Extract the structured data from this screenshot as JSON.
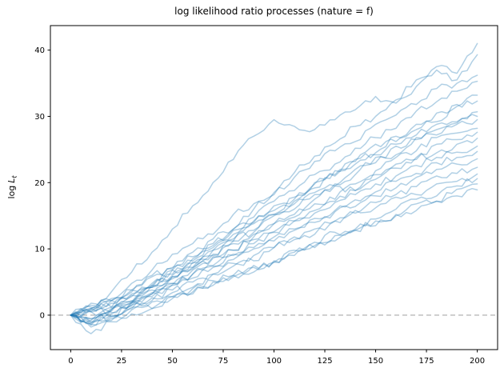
{
  "chart_data": {
    "type": "line",
    "title": "log likelihood ratio processes (nature = f)",
    "xlabel": "",
    "ylabel": "log L_t",
    "ylabel_parts": {
      "prefix": "log",
      "var": "L",
      "sub": "t"
    },
    "grid": false,
    "legend": "none",
    "xlim": [
      -10,
      210
    ],
    "ylim": [
      -5.2,
      43.7
    ],
    "xticks": [
      0,
      25,
      50,
      75,
      100,
      125,
      150,
      175,
      200
    ],
    "yticks": [
      0,
      10,
      20,
      30,
      40
    ],
    "zero_line": {
      "y": 0,
      "style": "dashed",
      "color": "#aaaaaa"
    },
    "line_color": "#1f77b4",
    "line_alpha": 0.35,
    "line_width": 1.5,
    "n_series": 20,
    "x": [
      0,
      10,
      20,
      30,
      40,
      50,
      60,
      70,
      80,
      90,
      100,
      110,
      120,
      130,
      140,
      150,
      160,
      170,
      180,
      190,
      200
    ],
    "series": [
      {
        "name": "path-01",
        "values": [
          0,
          1.0,
          3.5,
          6.5,
          9.5,
          13.0,
          16.5,
          20.0,
          23.5,
          27.0,
          29.5,
          28.5,
          28.0,
          29.5,
          31.0,
          33.0,
          32.0,
          34.5,
          37.5,
          36.5,
          41.0
        ]
      },
      {
        "name": "path-02",
        "values": [
          0,
          -0.8,
          1.2,
          2.0,
          4.5,
          6.0,
          8.5,
          11.5,
          13.0,
          16.0,
          18.5,
          21.5,
          24.0,
          26.0,
          28.5,
          30.0,
          32.5,
          35.5,
          37.0,
          35.5,
          39.3
        ]
      },
      {
        "name": "path-03",
        "values": [
          0,
          1.5,
          2.2,
          4.8,
          6.8,
          9.2,
          10.8,
          12.2,
          15.2,
          16.8,
          18.2,
          20.8,
          23.2,
          24.8,
          26.2,
          28.8,
          30.2,
          31.8,
          34.2,
          35.0,
          36.2
        ]
      },
      {
        "name": "path-04",
        "values": [
          0,
          -1.2,
          0.8,
          2.8,
          4.2,
          6.8,
          8.2,
          10.8,
          12.2,
          14.8,
          17.2,
          18.8,
          21.2,
          22.8,
          25.2,
          26.8,
          28.2,
          30.8,
          32.2,
          33.8,
          35.3
        ]
      },
      {
        "name": "path-05",
        "values": [
          0,
          0.5,
          2.5,
          3.5,
          6.0,
          7.0,
          9.5,
          10.5,
          13.0,
          14.0,
          16.5,
          17.5,
          20.0,
          21.0,
          23.5,
          24.5,
          27.0,
          28.0,
          30.5,
          31.5,
          33.2
        ]
      },
      {
        "name": "path-06",
        "values": [
          0,
          -1.8,
          -0.5,
          1.8,
          3.2,
          5.8,
          7.2,
          9.8,
          11.2,
          13.8,
          15.2,
          17.8,
          19.2,
          21.8,
          23.2,
          25.8,
          26.2,
          28.8,
          29.2,
          31.8,
          32.3
        ]
      },
      {
        "name": "path-07",
        "values": [
          0,
          1.2,
          2.2,
          3.8,
          5.8,
          7.2,
          8.8,
          10.2,
          12.8,
          14.2,
          15.8,
          17.2,
          19.8,
          21.2,
          22.8,
          24.2,
          25.8,
          27.2,
          28.8,
          29.2,
          30.7
        ]
      },
      {
        "name": "path-08",
        "values": [
          0,
          -0.5,
          1.0,
          2.0,
          4.5,
          5.5,
          8.0,
          9.0,
          11.5,
          12.5,
          15.0,
          16.0,
          18.5,
          19.5,
          22.0,
          23.0,
          25.5,
          26.5,
          28.0,
          29.0,
          30.0
        ]
      },
      {
        "name": "path-09",
        "values": [
          0,
          1.8,
          1.2,
          3.8,
          4.2,
          6.8,
          7.2,
          9.8,
          11.2,
          12.8,
          15.2,
          16.8,
          18.2,
          19.8,
          21.2,
          23.8,
          24.2,
          26.8,
          27.2,
          28.8,
          29.5
        ]
      },
      {
        "name": "path-10",
        "values": [
          0,
          -1.0,
          0.8,
          1.8,
          3.8,
          4.8,
          6.8,
          8.8,
          9.8,
          11.8,
          13.8,
          14.8,
          17.5,
          19.5,
          18.8,
          21.8,
          23.8,
          24.8,
          26.8,
          27.5,
          28.2
        ]
      },
      {
        "name": "path-11",
        "values": [
          0,
          0.8,
          2.2,
          3.2,
          4.8,
          6.2,
          7.8,
          9.2,
          10.8,
          12.2,
          13.8,
          15.2,
          16.8,
          17.5,
          19.8,
          21.2,
          22.8,
          23.5,
          25.8,
          26.5,
          27.6
        ]
      },
      {
        "name": "path-12",
        "values": [
          0,
          -1.5,
          -0.2,
          1.5,
          2.8,
          4.5,
          6.2,
          7.5,
          9.2,
          10.8,
          12.5,
          14.2,
          15.8,
          17.2,
          18.8,
          20.5,
          22.2,
          23.8,
          24.5,
          25.8,
          26.7
        ]
      },
      {
        "name": "path-13",
        "values": [
          0,
          0.6,
          1.8,
          3.0,
          4.2,
          5.8,
          7.0,
          8.6,
          9.8,
          11.4,
          12.6,
          14.2,
          15.4,
          17.0,
          18.2,
          19.8,
          21.0,
          22.6,
          23.8,
          24.6,
          25.5
        ]
      },
      {
        "name": "path-14",
        "values": [
          0,
          -0.6,
          0.6,
          2.2,
          3.4,
          4.6,
          6.2,
          7.4,
          9.0,
          10.2,
          11.8,
          13.0,
          14.6,
          15.8,
          17.4,
          18.6,
          20.2,
          21.4,
          23.0,
          23.8,
          24.7
        ]
      },
      {
        "name": "path-15",
        "values": [
          0,
          1.0,
          0.4,
          2.0,
          3.2,
          4.8,
          5.6,
          7.2,
          8.4,
          10.0,
          11.2,
          12.8,
          14.0,
          15.6,
          16.4,
          18.0,
          19.2,
          20.8,
          22.0,
          22.8,
          23.6
        ]
      },
      {
        "name": "path-16",
        "values": [
          0,
          -1.4,
          0.0,
          1.0,
          2.6,
          3.4,
          5.0,
          6.2,
          7.4,
          9.0,
          10.2,
          11.4,
          13.0,
          14.2,
          15.4,
          17.0,
          18.2,
          19.4,
          21.0,
          21.4,
          22.3
        ]
      },
      {
        "name": "path-17",
        "values": [
          0,
          -1.2,
          -0.2,
          1.2,
          2.2,
          3.8,
          4.2,
          6.2,
          7.8,
          8.2,
          10.2,
          11.8,
          12.2,
          14.2,
          15.8,
          16.2,
          17.8,
          18.2,
          19.8,
          20.2,
          21.3
        ]
      },
      {
        "name": "path-18",
        "values": [
          0,
          0.5,
          -0.8,
          0.8,
          2.0,
          2.5,
          4.0,
          4.5,
          6.0,
          7.5,
          8.0,
          9.5,
          11.0,
          12.5,
          13.0,
          14.5,
          16.0,
          17.5,
          18.0,
          19.5,
          20.6
        ]
      },
      {
        "name": "path-19",
        "values": [
          0,
          -2.8,
          -1.0,
          0.2,
          1.0,
          2.8,
          3.2,
          5.0,
          5.8,
          7.2,
          8.0,
          9.8,
          10.2,
          12.0,
          12.8,
          14.2,
          15.0,
          16.8,
          17.2,
          19.0,
          19.8
        ]
      },
      {
        "name": "path-20",
        "values": [
          0,
          1.0,
          0.2,
          1.5,
          1.0,
          2.8,
          3.5,
          5.2,
          6.0,
          6.5,
          8.2,
          9.0,
          10.5,
          11.2,
          12.8,
          13.5,
          15.2,
          15.8,
          17.2,
          18.0,
          18.9
        ]
      }
    ],
    "jitter": {
      "seed": 20,
      "amplitude": 0.55,
      "substeps": 4
    }
  }
}
